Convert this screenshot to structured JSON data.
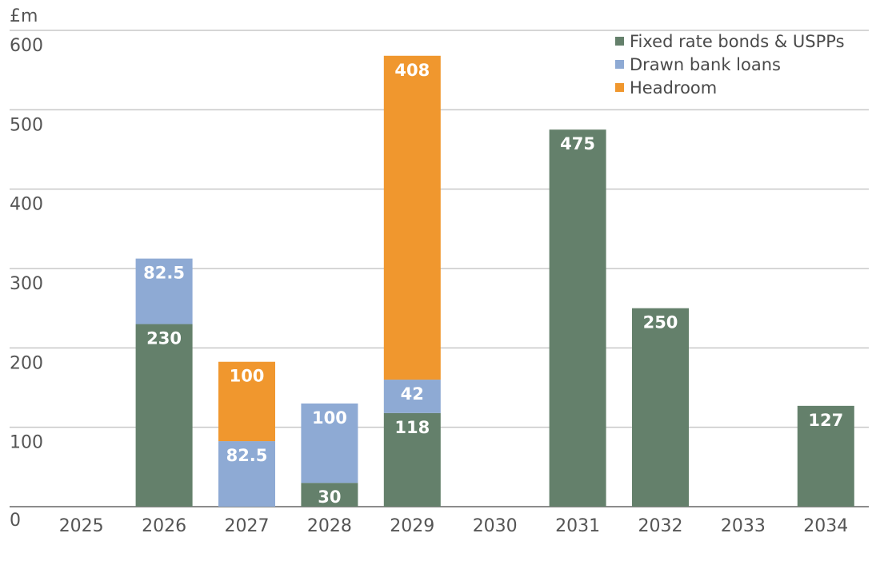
{
  "chart_data": {
    "type": "bar",
    "stacked": true,
    "unit_label": "£m",
    "title": "",
    "xlabel": "",
    "ylabel": "£m",
    "ylim": [
      0,
      600
    ],
    "yticks": [
      0,
      100,
      200,
      300,
      400,
      500,
      600
    ],
    "grid": true,
    "legend_position": "top-right",
    "categories": [
      "2025",
      "2026",
      "2027",
      "2028",
      "2029",
      "2030",
      "2031",
      "2032",
      "2033",
      "2034"
    ],
    "series": [
      {
        "name": "Fixed rate bonds & USPPs",
        "color": "#64806b",
        "values": [
          null,
          230,
          null,
          30,
          118,
          null,
          475,
          250,
          null,
          127
        ],
        "labels": [
          "",
          "230",
          "",
          "30",
          "118",
          "",
          "475",
          "250",
          "",
          "127"
        ]
      },
      {
        "name": "Drawn bank loans",
        "color": "#8eaad4",
        "values": [
          null,
          82.5,
          82.5,
          100,
          42,
          null,
          null,
          null,
          null,
          null
        ],
        "labels": [
          "",
          "82.5",
          "82.5",
          "100",
          "42",
          "",
          "",
          "",
          "",
          ""
        ]
      },
      {
        "name": "Headroom",
        "color": "#f0972e",
        "values": [
          null,
          null,
          100,
          null,
          408,
          null,
          null,
          null,
          null,
          null
        ],
        "labels": [
          "",
          "",
          "100",
          "",
          "408",
          "",
          "",
          "",
          "",
          ""
        ]
      }
    ]
  }
}
